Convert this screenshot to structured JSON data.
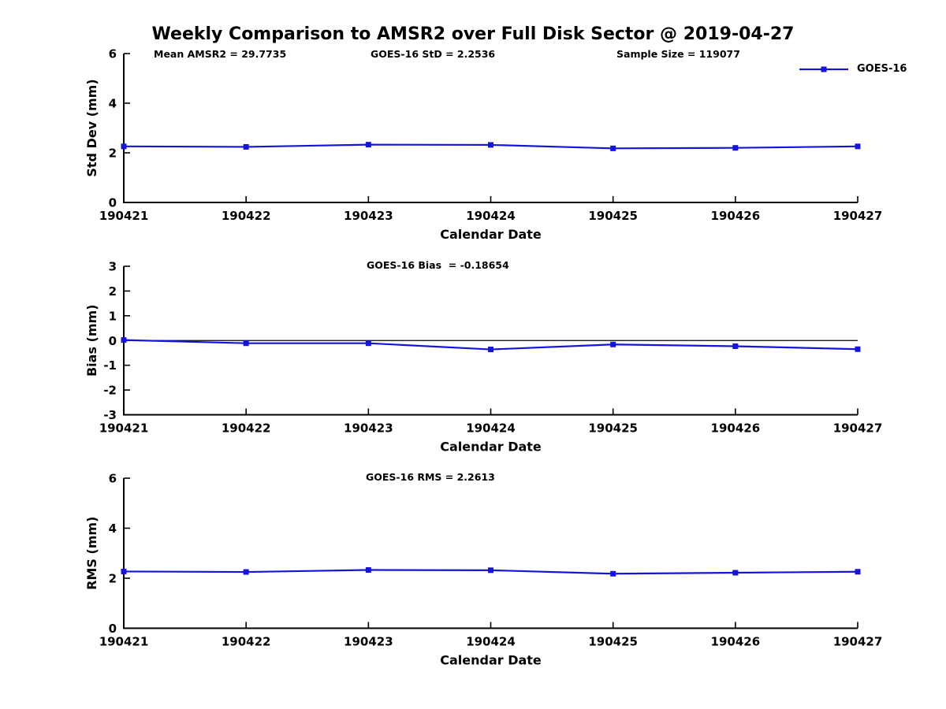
{
  "title": "Weekly Comparison to AMSR2 over Full Disk Sector @ 2019-04-27",
  "legend": {
    "label": "GOES-16",
    "color": "#1414DC"
  },
  "colors": {
    "series": "#1414DC",
    "axis": "#000000",
    "background": "#ffffff"
  },
  "chart_data": [
    {
      "type": "line",
      "panel": "std-dev",
      "annotations": [
        "Mean AMSR2 = 29.7735",
        "GOES-16 StD = 2.2536",
        "Sample Size = 119077"
      ],
      "categories": [
        "190421",
        "190422",
        "190423",
        "190424",
        "190425",
        "190426",
        "190427"
      ],
      "series": [
        {
          "name": "GOES-16",
          "values": [
            2.26,
            2.24,
            2.33,
            2.32,
            2.18,
            2.2,
            2.26
          ]
        }
      ],
      "xlabel": "Calendar Date",
      "ylabel": "Std Dev (mm)",
      "ylim": [
        0,
        6
      ],
      "yticks": [
        0,
        2,
        4,
        6
      ],
      "grid": false,
      "legend_position": "top-right",
      "zero_line": false
    },
    {
      "type": "line",
      "panel": "bias",
      "annotations": [
        "GOES-16 Bias  = -0.18654"
      ],
      "categories": [
        "190421",
        "190422",
        "190423",
        "190424",
        "190425",
        "190426",
        "190427"
      ],
      "series": [
        {
          "name": "GOES-16",
          "values": [
            0.02,
            -0.11,
            -0.11,
            -0.36,
            -0.16,
            -0.23,
            -0.35
          ]
        }
      ],
      "xlabel": "Calendar Date",
      "ylabel": "Bias (mm)",
      "ylim": [
        -3,
        3
      ],
      "yticks": [
        -3,
        -2,
        -1,
        0,
        1,
        2,
        3
      ],
      "grid": false,
      "zero_line": true
    },
    {
      "type": "line",
      "panel": "rms",
      "annotations": [
        "GOES-16 RMS = 2.2613"
      ],
      "categories": [
        "190421",
        "190422",
        "190423",
        "190424",
        "190425",
        "190426",
        "190427"
      ],
      "series": [
        {
          "name": "GOES-16",
          "values": [
            2.27,
            2.25,
            2.33,
            2.32,
            2.18,
            2.22,
            2.26
          ]
        }
      ],
      "xlabel": "Calendar Date",
      "ylabel": "RMS (mm)",
      "ylim": [
        0,
        6
      ],
      "yticks": [
        0,
        2,
        4,
        6
      ],
      "grid": false,
      "zero_line": false
    }
  ]
}
